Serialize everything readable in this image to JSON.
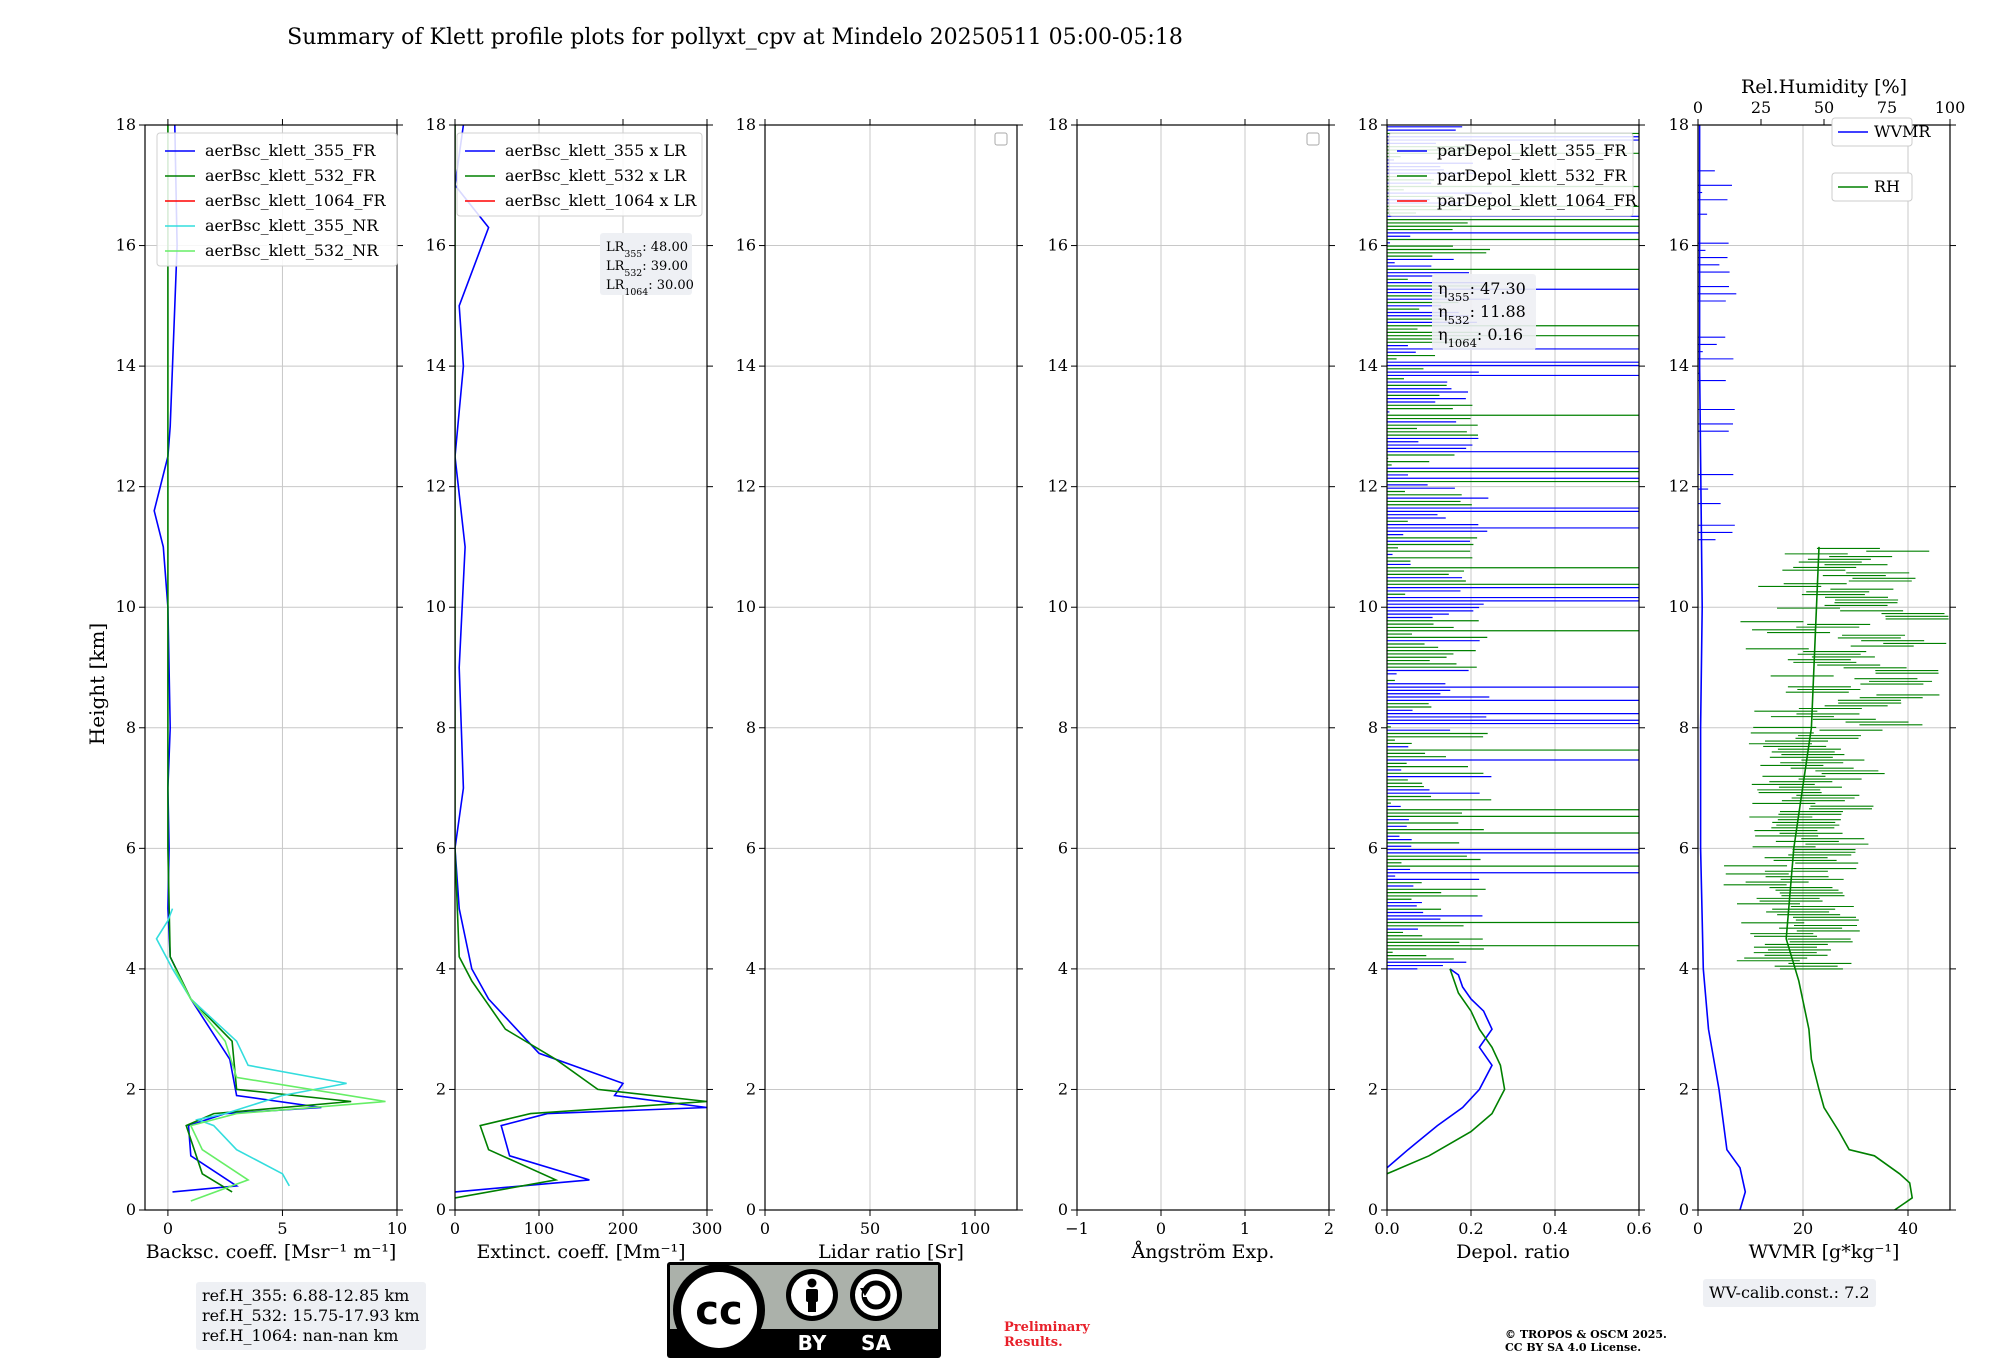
{
  "figure": {
    "title": "Summary of Klett profile plots for pollyxt_cpv at Mindelo 20250511 05:00-05:18",
    "ylabel": "Height [km]"
  },
  "chart_data": [
    {
      "type": "line",
      "xlabel": "Backsc. coeff. [Msr⁻¹ m⁻¹]",
      "xlim": [
        -1,
        10
      ],
      "ylim": [
        0,
        18
      ],
      "xticks": [
        0,
        5,
        10
      ],
      "yticks": [
        0,
        2,
        4,
        6,
        8,
        10,
        12,
        14,
        16,
        18
      ],
      "grid": true,
      "legend_position": "upper-right",
      "series": [
        {
          "name": "aerBsc_klett_355_FR",
          "color": "#0000ff",
          "x": [
            0.2,
            3.0,
            1.0,
            0.9,
            2.5,
            6.7,
            3.0,
            2.7,
            1.0,
            0.1,
            0.0,
            0.05,
            0.0,
            0.1,
            0.0,
            -0.2,
            -0.6,
            0.0,
            0.1,
            0.2,
            0.4,
            0.3
          ],
          "y": [
            0.3,
            0.4,
            0.9,
            1.4,
            1.6,
            1.7,
            1.9,
            2.5,
            3.5,
            4.2,
            5.0,
            6.0,
            7.0,
            8.0,
            10.0,
            11.0,
            11.6,
            12.5,
            13.0,
            14.0,
            16.0,
            18.0
          ]
        },
        {
          "name": "aerBsc_klett_532_FR",
          "color": "#008000",
          "x": [
            2.8,
            1.5,
            0.8,
            2.0,
            8.0,
            3.0,
            2.8,
            1.0,
            0.1,
            0.0,
            0.0,
            0.0,
            0.0
          ],
          "y": [
            0.3,
            0.6,
            1.4,
            1.6,
            1.8,
            2.0,
            2.8,
            3.5,
            4.2,
            6.0,
            10.0,
            14.0,
            18.0
          ]
        },
        {
          "name": "aerBsc_klett_1064_FR",
          "color": "#ff0000",
          "x": [],
          "y": []
        },
        {
          "name": "aerBsc_klett_355_NR",
          "color": "#33dddd",
          "x": [
            5.3,
            5.0,
            3.0,
            2.0,
            1.3,
            2.5,
            5.0,
            7.8,
            3.5,
            3.0,
            1.0,
            0.2,
            -0.5,
            0.0,
            0.2
          ],
          "y": [
            0.4,
            0.6,
            1.0,
            1.4,
            1.5,
            1.6,
            1.9,
            2.1,
            2.4,
            2.8,
            3.5,
            4.0,
            4.5,
            4.8,
            5.0
          ]
        },
        {
          "name": "aerBsc_klett_532_NR",
          "color": "#66ee66",
          "x": [
            1.0,
            3.5,
            1.5,
            1.0,
            3.0,
            9.5,
            3.0,
            2.5,
            1.0,
            0.3
          ],
          "y": [
            0.15,
            0.5,
            1.0,
            1.4,
            1.6,
            1.8,
            2.2,
            2.8,
            3.5,
            4.0
          ]
        }
      ]
    },
    {
      "type": "line",
      "xlabel": "Extinct. coeff. [Mm⁻¹]",
      "xlim": [
        0,
        300
      ],
      "ylim": [
        0,
        18
      ],
      "xticks": [
        0,
        100,
        200,
        300
      ],
      "yticks": [
        0,
        2,
        4,
        6,
        8,
        10,
        12,
        14,
        16,
        18
      ],
      "grid": true,
      "legend_position": "upper-right",
      "lr_box": {
        "lines": [
          "LR355: 48.00",
          "LR532: 39.00",
          "LR1064: 30.00"
        ]
      },
      "series": [
        {
          "name": "aerBsc_klett_355 x LR",
          "color": "#0000ff",
          "x": [
            0,
            160,
            65,
            55,
            110,
            300,
            190,
            200,
            100,
            40,
            20,
            5,
            0,
            10,
            5,
            12,
            0,
            10,
            5,
            40,
            0,
            10
          ],
          "y": [
            0.3,
            0.5,
            0.9,
            1.4,
            1.6,
            1.7,
            1.9,
            2.1,
            2.6,
            3.5,
            4.0,
            5.0,
            6.0,
            7.0,
            9.0,
            11.0,
            12.5,
            14.0,
            15.0,
            16.3,
            17.0,
            18.0
          ]
        },
        {
          "name": "aerBsc_klett_532 x LR",
          "color": "#008000",
          "x": [
            0,
            120,
            40,
            30,
            90,
            300,
            170,
            120,
            60,
            20,
            5,
            0,
            0,
            0
          ],
          "y": [
            0.2,
            0.5,
            1.0,
            1.4,
            1.6,
            1.8,
            2.0,
            2.5,
            3.0,
            3.8,
            4.2,
            6.0,
            12.0,
            18.0
          ]
        },
        {
          "name": "aerBsc_klett_1064 x LR",
          "color": "#ff0000",
          "x": [],
          "y": []
        }
      ]
    },
    {
      "type": "line",
      "xlabel": "Lidar ratio [Sr]",
      "xlim": [
        0,
        120
      ],
      "ylim": [
        0,
        18
      ],
      "xticks": [
        0,
        50,
        100
      ],
      "yticks": [
        0,
        2,
        4,
        6,
        8,
        10,
        12,
        14,
        16,
        18
      ],
      "grid": true,
      "legend_position": "upper-right",
      "series": []
    },
    {
      "type": "line",
      "xlabel": "Ångström Exp.",
      "xlim": [
        -1,
        2
      ],
      "ylim": [
        0,
        18
      ],
      "xticks": [
        -1,
        0,
        1,
        2
      ],
      "yticks": [
        0,
        2,
        4,
        6,
        8,
        10,
        12,
        14,
        16,
        18
      ],
      "grid": true,
      "legend_position": "upper-right",
      "series": []
    },
    {
      "type": "line",
      "xlabel": "Depol. ratio",
      "xlim": [
        0,
        0.6
      ],
      "ylim": [
        0,
        18
      ],
      "xticks": [
        0.0,
        0.2,
        0.4,
        0.6
      ],
      "yticks": [
        0,
        2,
        4,
        6,
        8,
        10,
        12,
        14,
        16,
        18
      ],
      "grid": true,
      "legend_position": "upper-left",
      "eta_box": {
        "lines": [
          "η355: 47.30",
          "η532: 11.88",
          "η1064: 0.16"
        ]
      },
      "series": [
        {
          "name": "parDepol_klett_355_FR",
          "color": "#0000ff",
          "x": [
            0.0,
            0.05,
            0.12,
            0.18,
            0.22,
            0.25,
            0.22,
            0.25,
            0.23,
            0.2,
            0.18,
            0.17,
            0.15
          ],
          "y": [
            0.7,
            1.0,
            1.4,
            1.7,
            2.0,
            2.4,
            2.7,
            3.0,
            3.3,
            3.5,
            3.7,
            3.9,
            4.0
          ]
        },
        {
          "name": "parDepol_klett_532_FR",
          "color": "#008000",
          "x": [
            0.0,
            0.1,
            0.2,
            0.25,
            0.28,
            0.27,
            0.25,
            0.22,
            0.2,
            0.17,
            0.16,
            0.15
          ],
          "y": [
            0.6,
            0.9,
            1.3,
            1.6,
            2.0,
            2.4,
            2.7,
            3.0,
            3.3,
            3.6,
            3.8,
            4.0
          ]
        },
        {
          "name": "parDepol_klett_1064_FR",
          "color": "#ff0000",
          "x": [],
          "y": []
        }
      ],
      "noise_above_km": 4
    },
    {
      "type": "line",
      "xlabel": "WVMR [g*kg⁻¹]",
      "x2label": "Rel.Humidity [%]",
      "xlim": [
        0,
        48
      ],
      "x2lim": [
        0,
        100
      ],
      "ylim": [
        0,
        18
      ],
      "xticks": [
        0,
        20,
        40
      ],
      "x2ticks": [
        0,
        25,
        50,
        75,
        100
      ],
      "yticks": [
        0,
        2,
        4,
        6,
        8,
        10,
        12,
        14,
        16,
        18
      ],
      "grid": true,
      "wv_calib": "WV-calib.const.: 7.2",
      "series": [
        {
          "name": "WVMR",
          "color": "#0000ff",
          "axis": "bottom",
          "x": [
            8.0,
            9.0,
            8.0,
            5.5,
            4.0,
            2.0,
            1.0,
            0.5,
            0.5,
            0.8,
            0.3,
            0.3
          ],
          "y": [
            0.0,
            0.3,
            0.7,
            1.0,
            2.0,
            3.0,
            4.0,
            6.0,
            8.0,
            10.0,
            14.0,
            18.0
          ]
        },
        {
          "name": "RH",
          "color": "#008000",
          "axis": "top",
          "x": [
            78,
            85,
            84,
            80,
            70,
            60,
            56,
            50,
            48,
            45,
            44,
            40,
            35,
            38,
            45,
            48
          ],
          "y": [
            0.0,
            0.2,
            0.45,
            0.6,
            0.9,
            1.0,
            1.3,
            1.7,
            2.0,
            2.5,
            3.0,
            3.8,
            4.5,
            6.0,
            8.0,
            11.0
          ]
        }
      ]
    }
  ],
  "ref_heights": [
    "ref.H_355: 6.88-12.85 km",
    "ref.H_532: 15.75-17.93 km",
    "ref.H_1064: nan-nan km"
  ],
  "license_badge": {
    "letters": "cc",
    "by": "BY",
    "sa": "SA"
  },
  "preliminary": [
    "Preliminary",
    "Results."
  ],
  "copyright": [
    "© TROPOS & OSCM 2025.",
    "CC BY SA 4.0 License."
  ]
}
